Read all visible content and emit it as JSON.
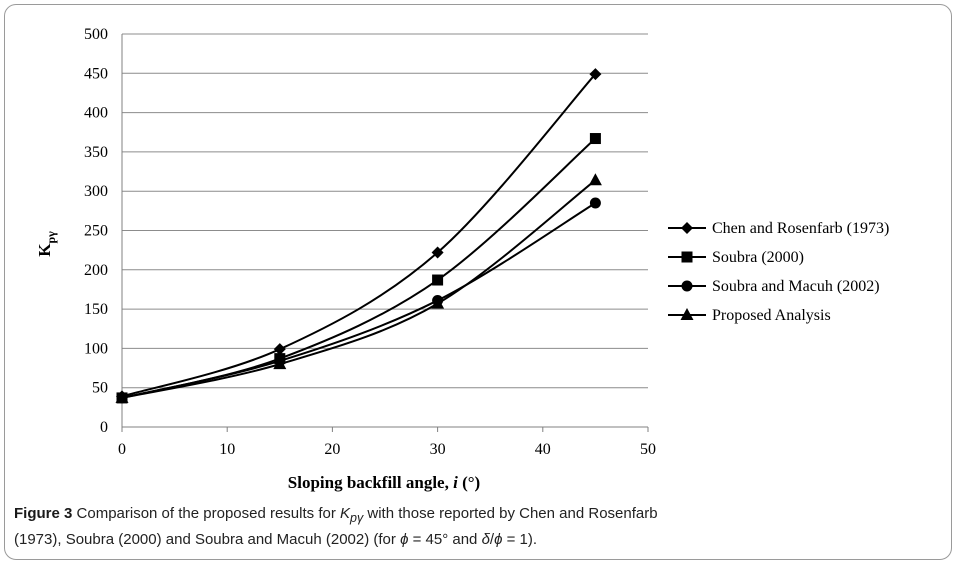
{
  "chart_data": {
    "type": "line",
    "xlabel_text": "Sloping backfill angle, ",
    "xlabel_var": "i",
    "xlabel_unit": " (°)",
    "ylabel_main": "K",
    "ylabel_sub": "pγ",
    "xlim": [
      0,
      50
    ],
    "ylim": [
      0,
      500
    ],
    "xticks": [
      0,
      10,
      20,
      30,
      40,
      50
    ],
    "yticks": [
      0,
      50,
      100,
      150,
      200,
      250,
      300,
      350,
      400,
      450,
      500
    ],
    "grid": "horizontal",
    "legend_position": "right",
    "x": [
      0,
      15,
      30,
      45
    ],
    "series": [
      {
        "name": "Chen and Rosenfarb (1973)",
        "marker": "diamond",
        "values": [
          39,
          99,
          222,
          449
        ]
      },
      {
        "name": "Soubra (2000)",
        "marker": "square",
        "values": [
          37,
          87,
          187,
          367
        ]
      },
      {
        "name": "Soubra and Macuh (2002)",
        "marker": "circle",
        "values": [
          37,
          84,
          161,
          285
        ]
      },
      {
        "name": "Proposed Analysis",
        "marker": "triangle",
        "values": [
          37,
          80,
          157,
          314
        ]
      }
    ]
  },
  "caption": {
    "label": "Figure 3",
    "text_1": " Comparison of the proposed results for ",
    "k_main": "K",
    "k_sub": "pγ",
    "text_2": " with those reported by Chen and Rosenfarb",
    "line2_1": "(1973), Soubra (2000) and Soubra and Macuh (2002) (for ",
    "phi_1": "ϕ",
    "line2_2": " = 45° and ",
    "delta": "δ",
    "slash": "/",
    "phi_2": "ϕ",
    "line2_3": " = 1)."
  }
}
